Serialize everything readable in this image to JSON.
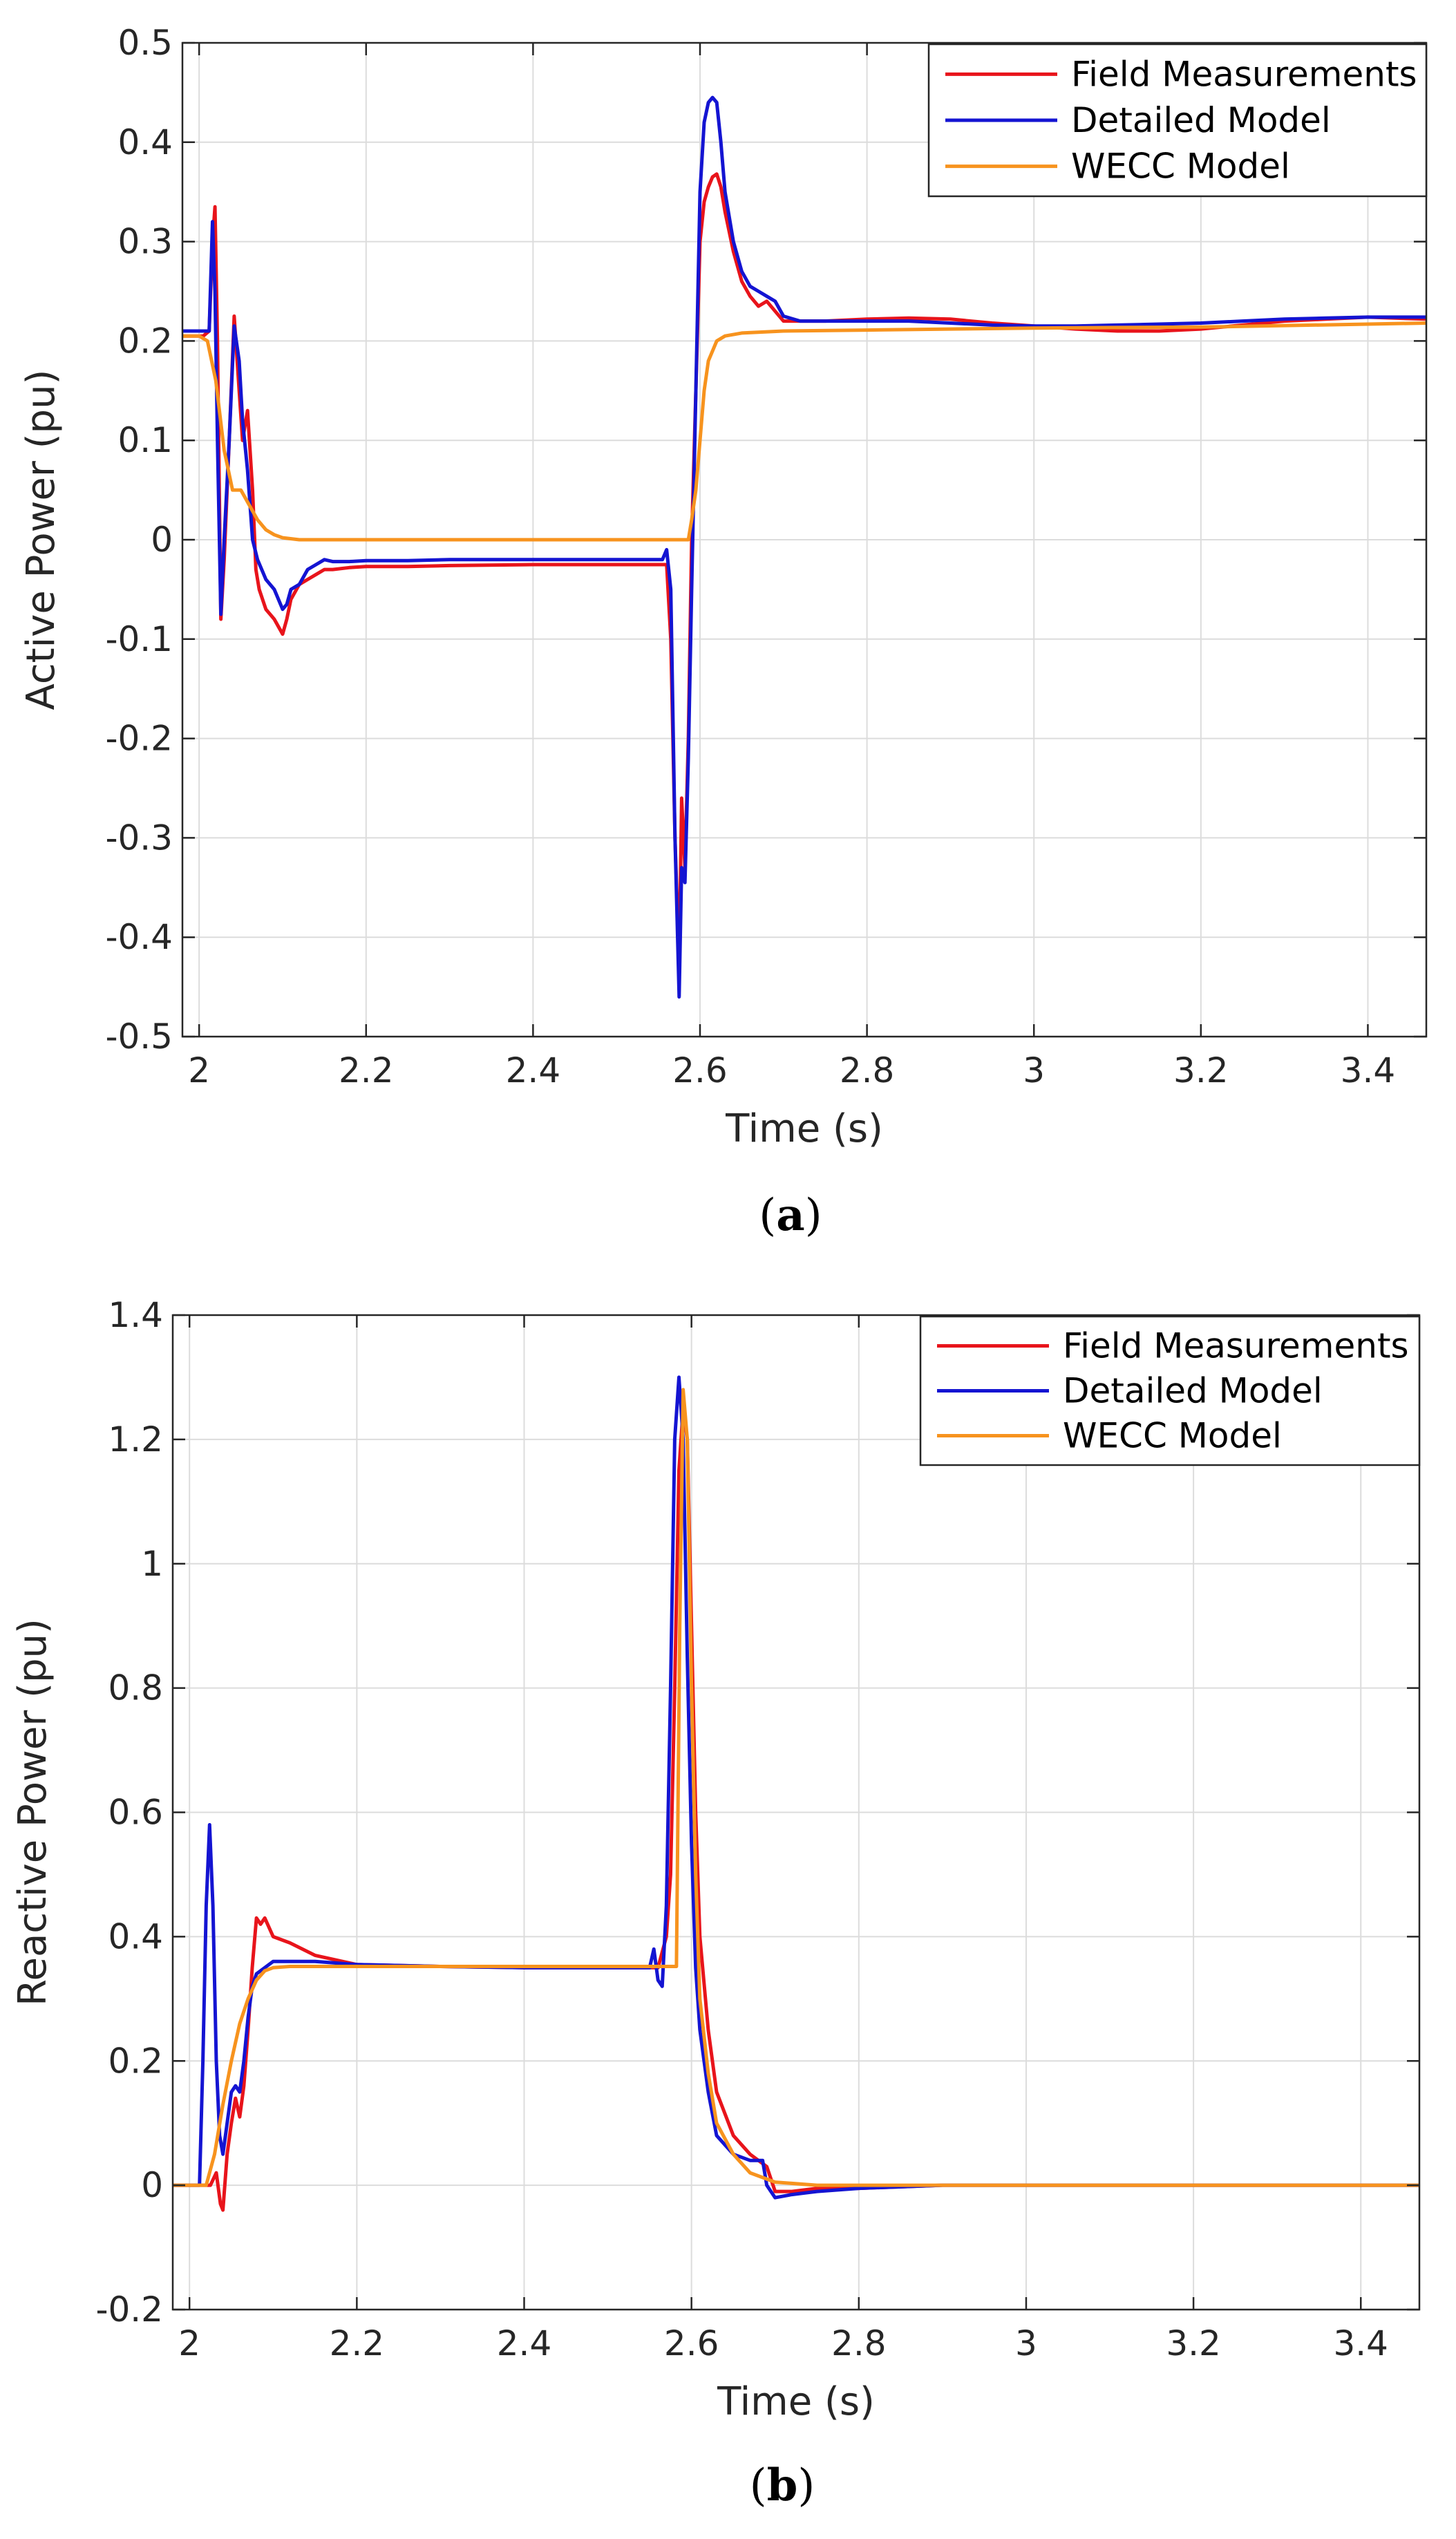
{
  "figure": {
    "panels": [
      "a",
      "b"
    ]
  },
  "chart_data": [
    {
      "type": "line",
      "caption": "(a)",
      "caption_open": "(",
      "caption_letter": "a",
      "caption_close": ")",
      "title": "",
      "xlabel": "Time (s)",
      "ylabel": "Active Power (pu)",
      "xlim": [
        1.98,
        3.47
      ],
      "ylim": [
        -0.5,
        0.5
      ],
      "xticks": [
        2,
        2.2,
        2.4,
        2.6,
        2.8,
        3,
        3.2,
        3.4
      ],
      "xtick_labels": [
        "2",
        "2.2",
        "2.4",
        "2.6",
        "2.8",
        "3",
        "3.2",
        "3.4"
      ],
      "yticks": [
        -0.5,
        -0.4,
        -0.3,
        -0.2,
        -0.1,
        0,
        0.1,
        0.2,
        0.3,
        0.4,
        0.5
      ],
      "ytick_labels": [
        "-0.5",
        "-0.4",
        "-0.3",
        "-0.2",
        "-0.1",
        "0",
        "0.1",
        "0.2",
        "0.3",
        "0.4",
        "0.5"
      ],
      "grid": true,
      "legend_position": "top-right",
      "series": [
        {
          "name": "Field Measurements",
          "color": "#e8141b",
          "x": [
            1.98,
            2.005,
            2.012,
            2.016,
            2.019,
            2.022,
            2.026,
            2.03,
            2.036,
            2.042,
            2.048,
            2.052,
            2.058,
            2.064,
            2.068,
            2.072,
            2.08,
            2.09,
            2.1,
            2.105,
            2.11,
            2.12,
            2.13,
            2.14,
            2.15,
            2.16,
            2.18,
            2.2,
            2.25,
            2.3,
            2.4,
            2.5,
            2.56,
            2.565,
            2.57,
            2.575,
            2.578,
            2.582,
            2.586,
            2.59,
            2.595,
            2.6,
            2.605,
            2.61,
            2.615,
            2.62,
            2.625,
            2.63,
            2.64,
            2.65,
            2.66,
            2.67,
            2.68,
            2.69,
            2.7,
            2.72,
            2.75,
            2.8,
            2.85,
            2.9,
            2.95,
            3.0,
            3.05,
            3.1,
            3.15,
            3.2,
            3.25,
            3.3,
            3.35,
            3.4,
            3.47
          ],
          "y": [
            0.205,
            0.205,
            0.21,
            0.3,
            0.335,
            0.2,
            -0.08,
            -0.02,
            0.1,
            0.225,
            0.15,
            0.1,
            0.13,
            0.05,
            -0.03,
            -0.05,
            -0.07,
            -0.08,
            -0.095,
            -0.08,
            -0.06,
            -0.045,
            -0.04,
            -0.035,
            -0.03,
            -0.03,
            -0.028,
            -0.027,
            -0.027,
            -0.026,
            -0.025,
            -0.025,
            -0.025,
            -0.1,
            -0.3,
            -0.43,
            -0.26,
            -0.33,
            -0.2,
            0.0,
            0.15,
            0.3,
            0.34,
            0.355,
            0.365,
            0.368,
            0.355,
            0.33,
            0.29,
            0.26,
            0.245,
            0.235,
            0.24,
            0.23,
            0.22,
            0.22,
            0.22,
            0.222,
            0.223,
            0.222,
            0.218,
            0.215,
            0.212,
            0.21,
            0.21,
            0.212,
            0.216,
            0.22,
            0.222,
            0.224,
            0.222
          ]
        },
        {
          "name": "Detailed Model",
          "color": "#1414d2",
          "x": [
            1.98,
            2.005,
            2.012,
            2.016,
            2.019,
            2.022,
            2.026,
            2.03,
            2.036,
            2.042,
            2.048,
            2.052,
            2.058,
            2.064,
            2.07,
            2.08,
            2.09,
            2.1,
            2.105,
            2.11,
            2.12,
            2.13,
            2.14,
            2.15,
            2.16,
            2.18,
            2.2,
            2.25,
            2.3,
            2.4,
            2.5,
            2.555,
            2.56,
            2.565,
            2.57,
            2.575,
            2.578,
            2.582,
            2.586,
            2.59,
            2.595,
            2.6,
            2.605,
            2.61,
            2.615,
            2.62,
            2.625,
            2.63,
            2.64,
            2.65,
            2.66,
            2.67,
            2.68,
            2.69,
            2.7,
            2.72,
            2.75,
            2.8,
            2.85,
            2.9,
            2.95,
            3.0,
            3.05,
            3.1,
            3.15,
            3.2,
            3.25,
            3.3,
            3.35,
            3.4,
            3.47
          ],
          "y": [
            0.21,
            0.21,
            0.21,
            0.32,
            0.25,
            0.1,
            -0.075,
            0.0,
            0.1,
            0.215,
            0.18,
            0.12,
            0.07,
            0.0,
            -0.02,
            -0.04,
            -0.05,
            -0.07,
            -0.065,
            -0.05,
            -0.045,
            -0.03,
            -0.025,
            -0.02,
            -0.022,
            -0.022,
            -0.021,
            -0.021,
            -0.02,
            -0.02,
            -0.02,
            -0.02,
            -0.01,
            -0.05,
            -0.3,
            -0.46,
            -0.33,
            -0.345,
            -0.22,
            -0.05,
            0.15,
            0.35,
            0.42,
            0.44,
            0.445,
            0.44,
            0.4,
            0.35,
            0.3,
            0.27,
            0.255,
            0.25,
            0.245,
            0.24,
            0.225,
            0.22,
            0.22,
            0.22,
            0.22,
            0.218,
            0.216,
            0.215,
            0.215,
            0.216,
            0.217,
            0.218,
            0.22,
            0.222,
            0.223,
            0.224,
            0.224
          ]
        },
        {
          "name": "WECC Model",
          "color": "#f7931e",
          "x": [
            1.98,
            2.0,
            2.01,
            2.02,
            2.03,
            2.04,
            2.05,
            2.06,
            2.07,
            2.08,
            2.09,
            2.1,
            2.12,
            2.15,
            2.2,
            2.3,
            2.4,
            2.5,
            2.586,
            2.59,
            2.595,
            2.6,
            2.605,
            2.61,
            2.62,
            2.63,
            2.65,
            2.7,
            2.8,
            2.9,
            3.0,
            3.2,
            3.47
          ],
          "y": [
            0.205,
            0.205,
            0.2,
            0.16,
            0.09,
            0.05,
            0.05,
            0.035,
            0.02,
            0.01,
            0.005,
            0.002,
            0.0,
            0.0,
            0.0,
            0.0,
            0.0,
            0.0,
            0.0,
            0.02,
            0.05,
            0.1,
            0.15,
            0.18,
            0.2,
            0.205,
            0.208,
            0.21,
            0.211,
            0.212,
            0.213,
            0.214,
            0.218
          ]
        }
      ]
    },
    {
      "type": "line",
      "caption": "(b)",
      "caption_open": "(",
      "caption_letter": "b",
      "caption_close": ")",
      "title": "",
      "xlabel": "Time (s)",
      "ylabel": "Reactive Power (pu)",
      "xlim": [
        1.98,
        3.47
      ],
      "ylim": [
        -0.2,
        1.4
      ],
      "xticks": [
        2,
        2.2,
        2.4,
        2.6,
        2.8,
        3,
        3.2,
        3.4
      ],
      "xtick_labels": [
        "2",
        "2.2",
        "2.4",
        "2.6",
        "2.8",
        "3",
        "3.2",
        "3.4"
      ],
      "yticks": [
        -0.2,
        0,
        0.2,
        0.4,
        0.6,
        0.8,
        1,
        1.2,
        1.4
      ],
      "ytick_labels": [
        "-0.2",
        "0",
        "0.2",
        "0.4",
        "0.6",
        "0.8",
        "1",
        "1.2",
        "1.4"
      ],
      "grid": true,
      "legend_position": "top-right",
      "series": [
        {
          "name": "Field Measurements",
          "color": "#e8141b",
          "x": [
            1.98,
            2.005,
            2.015,
            2.025,
            2.032,
            2.037,
            2.04,
            2.045,
            2.05,
            2.055,
            2.06,
            2.065,
            2.07,
            2.075,
            2.08,
            2.085,
            2.09,
            2.1,
            2.12,
            2.15,
            2.2,
            2.3,
            2.4,
            2.5,
            2.56,
            2.57,
            2.575,
            2.58,
            2.585,
            2.59,
            2.595,
            2.6,
            2.605,
            2.61,
            2.62,
            2.63,
            2.65,
            2.67,
            2.69,
            2.7,
            2.72,
            2.75,
            2.8,
            2.9,
            3.0,
            3.2,
            3.47
          ],
          "y": [
            0.0,
            0.0,
            0.0,
            0.0,
            0.02,
            -0.03,
            -0.04,
            0.05,
            0.1,
            0.14,
            0.11,
            0.16,
            0.25,
            0.35,
            0.43,
            0.42,
            0.43,
            0.4,
            0.39,
            0.37,
            0.355,
            0.352,
            0.35,
            0.35,
            0.35,
            0.4,
            0.5,
            0.8,
            1.15,
            1.25,
            1.2,
            0.9,
            0.6,
            0.4,
            0.25,
            0.15,
            0.08,
            0.05,
            0.03,
            -0.01,
            -0.01,
            -0.005,
            -0.005,
            0.0,
            0.0,
            0.0,
            0.0
          ]
        },
        {
          "name": "Detailed Model",
          "color": "#1414d2",
          "x": [
            1.98,
            2.005,
            2.012,
            2.016,
            2.02,
            2.024,
            2.028,
            2.032,
            2.036,
            2.04,
            2.045,
            2.05,
            2.055,
            2.06,
            2.065,
            2.07,
            2.075,
            2.08,
            2.09,
            2.1,
            2.12,
            2.15,
            2.2,
            2.3,
            2.4,
            2.5,
            2.55,
            2.555,
            2.56,
            2.565,
            2.57,
            2.575,
            2.58,
            2.585,
            2.59,
            2.595,
            2.6,
            2.605,
            2.61,
            2.62,
            2.63,
            2.65,
            2.67,
            2.685,
            2.69,
            2.7,
            2.72,
            2.75,
            2.8,
            2.9,
            3.0,
            3.2,
            3.47
          ],
          "y": [
            0.0,
            0.0,
            0.0,
            0.2,
            0.45,
            0.58,
            0.45,
            0.2,
            0.08,
            0.05,
            0.1,
            0.15,
            0.16,
            0.15,
            0.2,
            0.27,
            0.32,
            0.34,
            0.35,
            0.36,
            0.36,
            0.36,
            0.355,
            0.352,
            0.35,
            0.35,
            0.35,
            0.38,
            0.33,
            0.32,
            0.45,
            0.8,
            1.2,
            1.3,
            1.2,
            0.85,
            0.55,
            0.35,
            0.25,
            0.15,
            0.08,
            0.05,
            0.04,
            0.04,
            0.0,
            -0.02,
            -0.015,
            -0.01,
            -0.005,
            0.0,
            0.0,
            0.0,
            0.0
          ]
        },
        {
          "name": "WECC Model",
          "color": "#f7931e",
          "x": [
            1.98,
            2.01,
            2.02,
            2.03,
            2.04,
            2.05,
            2.06,
            2.07,
            2.08,
            2.09,
            2.1,
            2.12,
            2.15,
            2.2,
            2.3,
            2.4,
            2.5,
            2.582,
            2.586,
            2.59,
            2.595,
            2.6,
            2.605,
            2.61,
            2.62,
            2.63,
            2.65,
            2.67,
            2.7,
            2.75,
            2.8,
            2.9,
            3.0,
            3.2,
            3.47
          ],
          "y": [
            0.0,
            0.0,
            0.0,
            0.05,
            0.13,
            0.2,
            0.26,
            0.3,
            0.33,
            0.345,
            0.35,
            0.352,
            0.352,
            0.352,
            0.352,
            0.352,
            0.352,
            0.352,
            0.9,
            1.28,
            1.2,
            0.8,
            0.5,
            0.3,
            0.18,
            0.1,
            0.05,
            0.02,
            0.005,
            0.0,
            0.0,
            0.0,
            0.0,
            0.0,
            0.0
          ]
        }
      ]
    }
  ]
}
